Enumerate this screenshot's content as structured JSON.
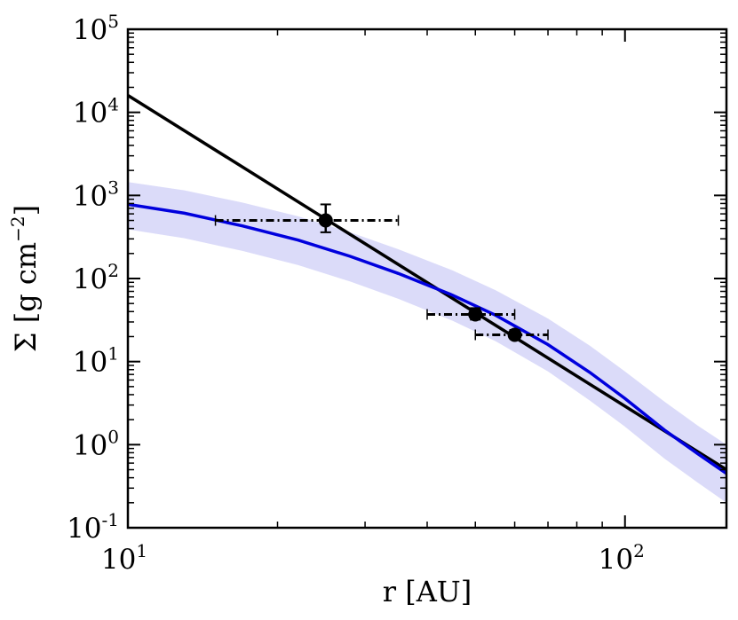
{
  "chart_data": {
    "type": "line",
    "xlabel": "r [AU]",
    "ylabel": "Σ [g cm⁻²]",
    "ylabel_base": "Σ [g cm",
    "ylabel_exp": "−2",
    "ylabel_close": "]",
    "xscale": "log",
    "yscale": "log",
    "xlim": [
      10,
      160
    ],
    "ylim": [
      0.1,
      100000
    ],
    "grid": false,
    "x_ticks": [
      {
        "value": 10,
        "base": "10",
        "exp": "1"
      },
      {
        "value": 100,
        "base": "10",
        "exp": "2"
      }
    ],
    "y_ticks": [
      {
        "value": 100000,
        "base": "10",
        "exp": "5"
      },
      {
        "value": 10000,
        "base": "10",
        "exp": "4"
      },
      {
        "value": 1000,
        "base": "10",
        "exp": "3"
      },
      {
        "value": 100,
        "base": "10",
        "exp": "2"
      },
      {
        "value": 10,
        "base": "10",
        "exp": "1"
      },
      {
        "value": 1,
        "base": "10",
        "exp": "0"
      },
      {
        "value": 0.1,
        "base": "10",
        "exp": "-1"
      }
    ],
    "series": [
      {
        "kind": "power-law",
        "color": "#000000",
        "x": [
          10,
          160
        ],
        "y": [
          16000,
          0.5
        ]
      },
      {
        "kind": "tapered",
        "color": "#0000dd",
        "band_color": "#9999ee",
        "x": [
          10,
          13,
          17,
          22,
          28,
          35,
          45,
          55,
          70,
          85,
          100,
          120,
          140,
          160
        ],
        "y": [
          780,
          610,
          430,
          290,
          185,
          115,
          63,
          36,
          16,
          7.4,
          3.6,
          1.5,
          0.78,
          0.45
        ],
        "y_lower": [
          390,
          305,
          215,
          145,
          92,
          57,
          31,
          17.5,
          7.6,
          3.4,
          1.65,
          0.68,
          0.35,
          0.2
        ],
        "y_upper": [
          1450,
          1150,
          820,
          560,
          360,
          225,
          125,
          72,
          33,
          15.5,
          7.6,
          3.3,
          1.7,
          1.0
        ]
      },
      {
        "kind": "points",
        "color": "#000000",
        "points": [
          {
            "x": 25,
            "y": 500,
            "xerr": [
              15,
              35
            ],
            "yerr": [
              360,
              780
            ]
          },
          {
            "x": 50,
            "y": 37,
            "xerr": [
              40,
              60
            ],
            "yerr": [
              32,
              44
            ]
          },
          {
            "x": 60,
            "y": 21,
            "xerr": [
              50,
              70
            ],
            "yerr": [
              19,
              24
            ]
          }
        ]
      }
    ]
  }
}
